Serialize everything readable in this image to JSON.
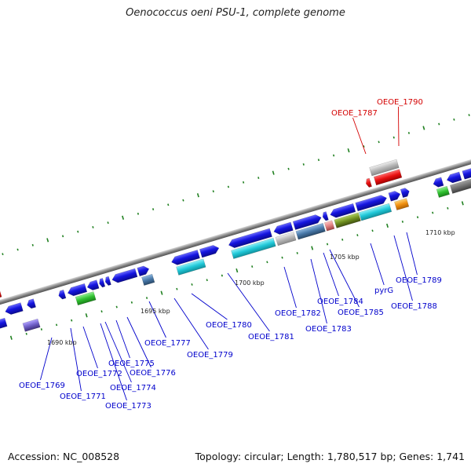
{
  "title": "Oenococcus oeni PSU-1, complete genome",
  "footer": {
    "accession": "Accession: NC_008528",
    "summary": "Topology: circular; Length: 1,780,517 bp; Genes: 1,741"
  },
  "ticks": [
    "1690 kbp",
    "1695 kbp",
    "1700 kbp",
    "1705 kbp",
    "1710 kbp"
  ],
  "gene_labels": [
    {
      "text": "OEOE_1790",
      "color": "#d40000"
    },
    {
      "text": "OEOE_1787",
      "color": "#d40000"
    },
    {
      "text": "OEOE_1789",
      "color": "#0000cc"
    },
    {
      "text": "pyrG",
      "color": "#0000cc"
    },
    {
      "text": "OEOE_1788",
      "color": "#0000cc"
    },
    {
      "text": "OEOE_1784",
      "color": "#0000cc"
    },
    {
      "text": "OEOE_1785",
      "color": "#0000cc"
    },
    {
      "text": "OEOE_1782",
      "color": "#0000cc"
    },
    {
      "text": "OEOE_1783",
      "color": "#0000cc"
    },
    {
      "text": "OEOE_1780",
      "color": "#0000cc"
    },
    {
      "text": "OEOE_1781",
      "color": "#0000cc"
    },
    {
      "text": "OEOE_1777",
      "color": "#0000cc"
    },
    {
      "text": "OEOE_1779",
      "color": "#0000cc"
    },
    {
      "text": "OEOE_1775",
      "color": "#0000cc"
    },
    {
      "text": "OEOE_1776",
      "color": "#0000cc"
    },
    {
      "text": "OEOE_1772",
      "color": "#0000cc"
    },
    {
      "text": "OEOE_1774",
      "color": "#0000cc"
    },
    {
      "text": "OEOE_1773",
      "color": "#0000cc"
    },
    {
      "text": "OEOE_1771",
      "color": "#0000cc"
    },
    {
      "text": "OEOE_1769",
      "color": "#0000cc"
    }
  ],
  "colors": {
    "gene_blue": "#1515e0",
    "rrna_cyan": "#20c8d8",
    "trna_red": "#e81010",
    "pseudo_gray": "#b8b8b8",
    "green": "#30c030",
    "purple": "#7060c8",
    "olive": "#709020",
    "orange": "#f09010",
    "steel": "#4878a8",
    "backbone": "#8a8a8a",
    "gc_dot": "#208020"
  }
}
